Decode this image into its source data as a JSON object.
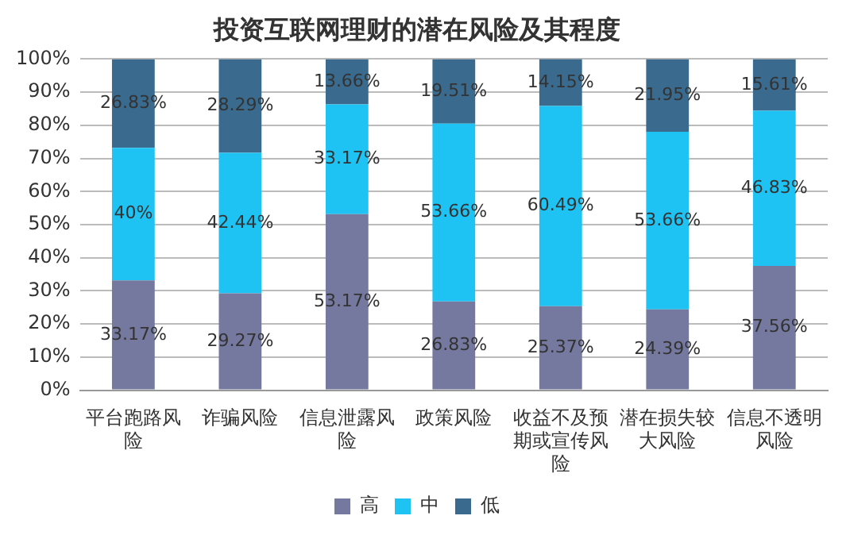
{
  "chart_data": {
    "type": "bar",
    "stacked": true,
    "title": "投资互联网理财的潜在风险及其程度",
    "categories": [
      "平台跑路风险",
      "诈骗风险",
      "信息泄露风险",
      "政策风险",
      "收益不及预期或宣传风险",
      "潜在损失较大风险",
      "信息不透明风险"
    ],
    "series": [
      {
        "name": "高",
        "color": "#7579a0",
        "values": [
          33.17,
          29.27,
          53.17,
          26.83,
          25.37,
          24.39,
          37.56
        ],
        "value_labels": [
          "33.17%",
          "29.27%",
          "53.17%",
          "26.83%",
          "25.37%",
          "24.39%",
          "37.56%"
        ]
      },
      {
        "name": "中",
        "color": "#1fc3f3",
        "values": [
          40,
          42.44,
          33.17,
          53.66,
          60.49,
          53.66,
          46.83
        ],
        "value_labels": [
          "40%",
          "42.44%",
          "33.17%",
          "53.66%",
          "60.49%",
          "53.66%",
          "46.83%"
        ]
      },
      {
        "name": "低",
        "color": "#3a6b8f",
        "values": [
          26.83,
          28.29,
          13.66,
          19.51,
          14.15,
          21.95,
          15.61
        ],
        "value_labels": [
          "26.83%",
          "28.29%",
          "13.66%",
          "19.51%",
          "14.15%",
          "21.95%",
          "15.61%"
        ]
      }
    ],
    "ylim": [
      0,
      100
    ],
    "yticks": [
      {
        "value": 0,
        "label": "0%"
      },
      {
        "value": 10,
        "label": "10%"
      },
      {
        "value": 20,
        "label": "20%"
      },
      {
        "value": 30,
        "label": "30%"
      },
      {
        "value": 40,
        "label": "40%"
      },
      {
        "value": 50,
        "label": "50%"
      },
      {
        "value": 60,
        "label": "60%"
      },
      {
        "value": 70,
        "label": "70%"
      },
      {
        "value": 80,
        "label": "80%"
      },
      {
        "value": 90,
        "label": "90%"
      },
      {
        "value": 100,
        "label": "100%"
      }
    ],
    "grid": "y",
    "legend": "bottom"
  }
}
